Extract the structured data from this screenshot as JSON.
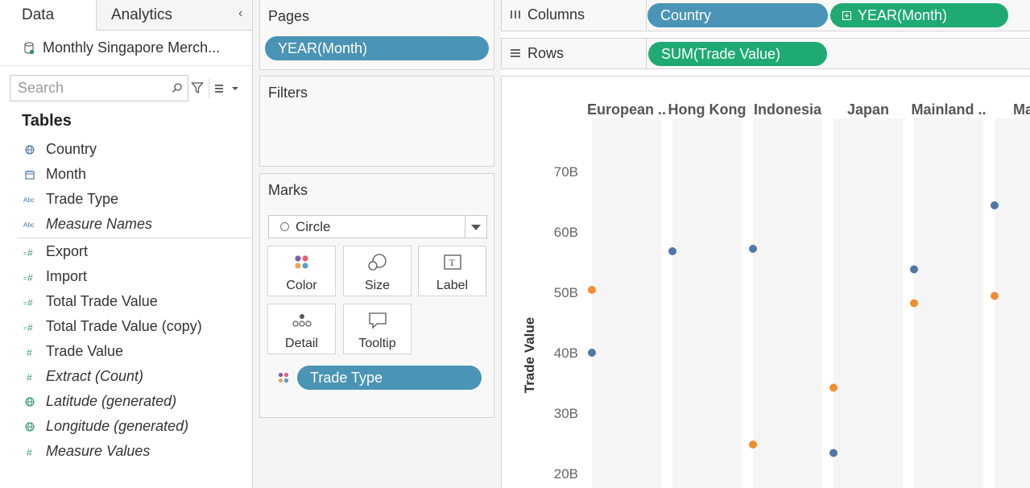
{
  "data_pane": {
    "tabs": [
      {
        "label": "Data",
        "active": true
      },
      {
        "label": "Analytics",
        "active": false
      }
    ],
    "collapse_icon": "chevron-left-icon",
    "data_source": "Monthly Singapore Merch...",
    "search": {
      "placeholder": "Search",
      "value": ""
    },
    "tables_heading": "Tables",
    "dimensions": [
      {
        "label": "Country",
        "icon": "globe-icon",
        "italic": false
      },
      {
        "label": "Month",
        "icon": "calendar-icon",
        "italic": false
      },
      {
        "label": "Trade Type",
        "icon": "abc-icon",
        "italic": false
      },
      {
        "label": "Measure Names",
        "icon": "abc-icon",
        "italic": true
      }
    ],
    "measures": [
      {
        "label": "Export",
        "icon": "calculated-number-icon",
        "italic": false
      },
      {
        "label": "Import",
        "icon": "calculated-number-icon",
        "italic": false
      },
      {
        "label": "Total Trade Value",
        "icon": "calculated-number-icon",
        "italic": false
      },
      {
        "label": "Total Trade Value (copy)",
        "icon": "calculated-number-icon",
        "italic": false
      },
      {
        "label": "Trade Value",
        "icon": "number-icon",
        "italic": false
      },
      {
        "label": "Extract (Count)",
        "icon": "number-icon",
        "italic": true
      },
      {
        "label": "Latitude (generated)",
        "icon": "globe-icon",
        "italic": true
      },
      {
        "label": "Longitude (generated)",
        "icon": "globe-icon",
        "italic": true
      },
      {
        "label": "Measure Values",
        "icon": "number-icon",
        "italic": true
      }
    ]
  },
  "cards": {
    "pages": {
      "title": "Pages",
      "pill": "YEAR(Month)"
    },
    "filters": {
      "title": "Filters"
    },
    "marks": {
      "title": "Marks",
      "mark_type": "Circle",
      "buttons": [
        "Color",
        "Size",
        "Label",
        "Detail",
        "Tooltip"
      ],
      "color_pill": "Trade Type"
    }
  },
  "shelves": {
    "columns": {
      "label": "Columns",
      "pills": [
        {
          "label": "Country",
          "color": "#4a94b5",
          "expandable": false
        },
        {
          "label": "YEAR(Month)",
          "color": "#1faa73",
          "expandable": true
        }
      ]
    },
    "rows": {
      "label": "Rows",
      "pills": [
        {
          "label": "SUM(Trade Value)",
          "color": "#1faa73"
        }
      ]
    }
  },
  "colors": {
    "export": "#4e79a7",
    "import": "#f28e2b",
    "dimension_pill": "#4a94b5",
    "measure_pill": "#1faa73"
  },
  "chart_data": {
    "type": "scatter",
    "title": "",
    "xlabel": "",
    "ylabel": "Trade Value",
    "categories": [
      "European ..",
      "Hong Kong",
      "Indonesia",
      "Japan",
      "Mainland ..",
      "Mala"
    ],
    "yticks": [
      "20B",
      "30B",
      "40B",
      "50B",
      "60B",
      "70B"
    ],
    "ylim": [
      19,
      81
    ],
    "series": [
      {
        "color": "#4e79a7",
        "values": [
          40.0,
          56.8,
          57.2,
          23.4,
          53.8,
          64.4
        ]
      },
      {
        "color": "#f28e2b",
        "values": [
          50.4,
          null,
          24.8,
          34.2,
          48.2,
          49.4
        ]
      }
    ]
  }
}
